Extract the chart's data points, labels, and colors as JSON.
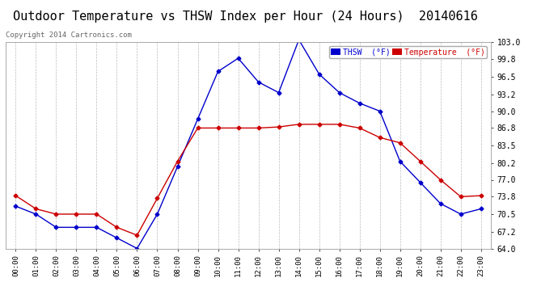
{
  "title": "Outdoor Temperature vs THSW Index per Hour (24 Hours)  20140616",
  "copyright": "Copyright 2014 Cartronics.com",
  "x_labels": [
    "00:00",
    "01:00",
    "02:00",
    "03:00",
    "04:00",
    "05:00",
    "06:00",
    "07:00",
    "08:00",
    "09:00",
    "10:00",
    "11:00",
    "12:00",
    "13:00",
    "14:00",
    "15:00",
    "16:00",
    "17:00",
    "18:00",
    "19:00",
    "20:00",
    "21:00",
    "22:00",
    "23:00"
  ],
  "thsw": [
    72.0,
    70.5,
    68.0,
    68.0,
    68.0,
    66.0,
    64.0,
    70.5,
    79.5,
    88.5,
    97.5,
    100.0,
    95.5,
    93.5,
    103.5,
    97.0,
    93.5,
    91.5,
    90.0,
    80.5,
    76.5,
    72.5,
    70.5,
    71.5
  ],
  "temperature": [
    74.0,
    71.5,
    70.5,
    70.5,
    70.5,
    68.0,
    66.5,
    73.5,
    80.5,
    86.8,
    86.8,
    86.8,
    86.8,
    87.0,
    87.5,
    87.5,
    87.5,
    86.8,
    85.0,
    84.0,
    80.5,
    77.0,
    73.8,
    74.0
  ],
  "ylim": [
    64.0,
    103.0
  ],
  "yticks": [
    64.0,
    67.2,
    70.5,
    73.8,
    77.0,
    80.2,
    83.5,
    86.8,
    90.0,
    93.2,
    96.5,
    99.8,
    103.0
  ],
  "thsw_color": "#0000cc",
  "temp_color": "#cc0000",
  "bg_color": "#ffffff",
  "grid_color": "#bbbbbb",
  "title_fontsize": 11,
  "legend_thsw_label": "THSW  (°F)",
  "legend_temp_label": "Temperature  (°F)"
}
